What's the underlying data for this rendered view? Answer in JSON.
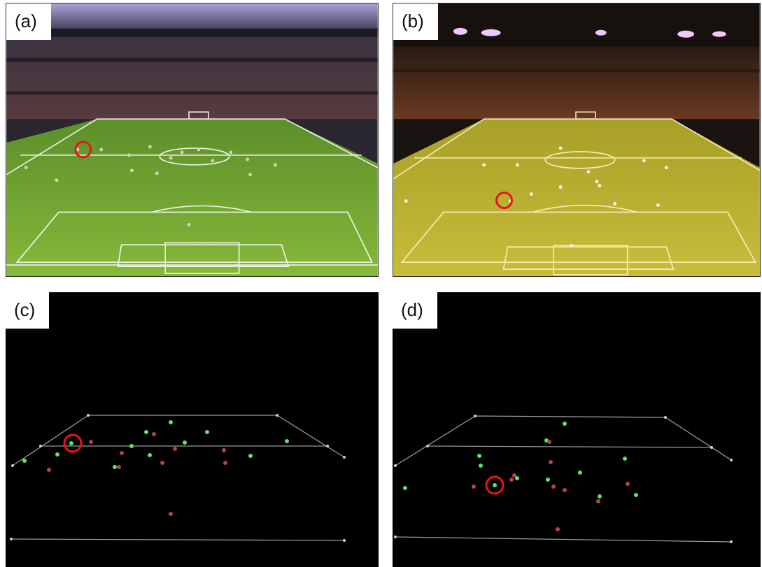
{
  "panels": [
    {
      "id": "a",
      "label": "(a)",
      "kind": "stadium-photo",
      "tint": "green"
    },
    {
      "id": "b",
      "label": "(b)",
      "kind": "stadium-photo",
      "tint": "yellow"
    },
    {
      "id": "c",
      "label": "(c)",
      "kind": "tracking-plot"
    },
    {
      "id": "d",
      "label": "(d)",
      "kind": "tracking-plot"
    }
  ],
  "colors": {
    "highlight_ring": "#e8141c",
    "team_green": "#5fe36a",
    "team_red": "#b8404c",
    "plot_background": "#000000",
    "plot_lines": "#9a9a9a"
  }
}
